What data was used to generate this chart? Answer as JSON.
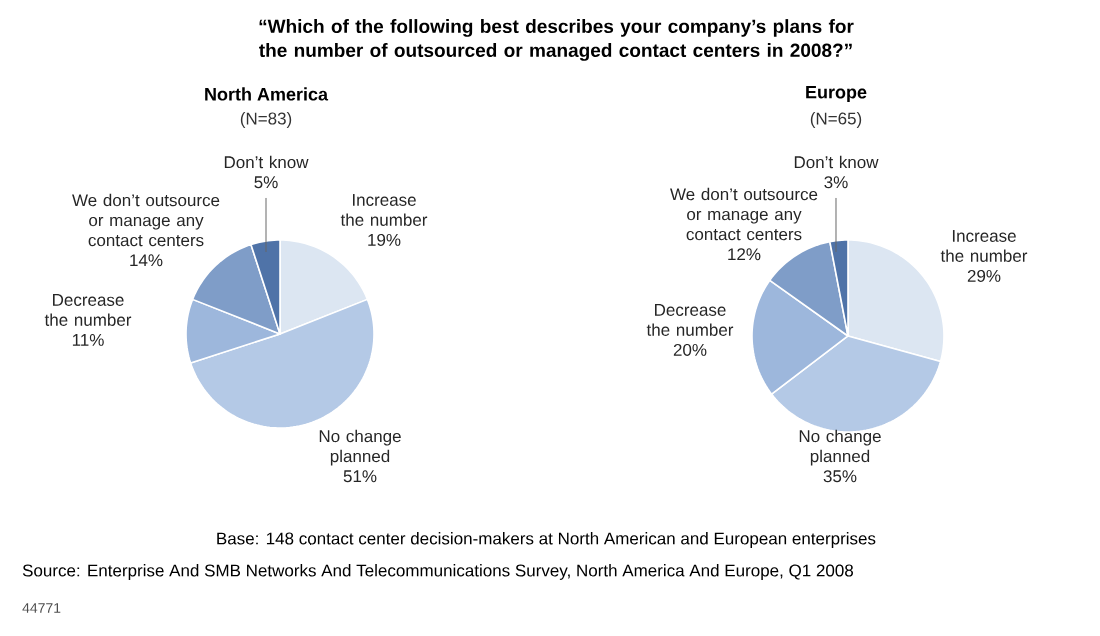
{
  "chart_data": [
    {
      "type": "pie",
      "title": "North America",
      "subtitle": "(N=83)",
      "categories": [
        "Increase the number",
        "No change planned",
        "Decrease the number",
        "We don’t outsource or manage any contact centers",
        "Don’t know"
      ],
      "values": [
        19,
        51,
        11,
        14,
        5
      ],
      "value_labels": [
        "19%",
        "51%",
        "11%",
        "14%",
        "5%"
      ],
      "colors": [
        "#dce6f2",
        "#b4c9e6",
        "#9db7dc",
        "#7f9dc8",
        "#4f73a8"
      ],
      "annotations": [
        "“Which of the following best describes your company’s plans for the number of outsourced or managed contact centers in 2008?”",
        "Base: 148 contact center decision-makers at North American and European enterprises",
        "Source: Enterprise And SMB Networks And Telecommunications Survey, North America And Europe, Q1 2008",
        "44771"
      ]
    },
    {
      "type": "pie",
      "title": "Europe",
      "subtitle": "(N=65)",
      "categories": [
        "Increase the number",
        "No change planned",
        "Decrease the number",
        "We don’t outsource or manage any contact centers",
        "Don’t know"
      ],
      "values": [
        29,
        35,
        20,
        12,
        3
      ],
      "value_labels": [
        "29%",
        "35%",
        "20%",
        "12%",
        "3%"
      ],
      "colors": [
        "#dce6f2",
        "#b4c9e6",
        "#9db7dc",
        "#7f9dc8",
        "#4f73a8"
      ]
    }
  ]
}
